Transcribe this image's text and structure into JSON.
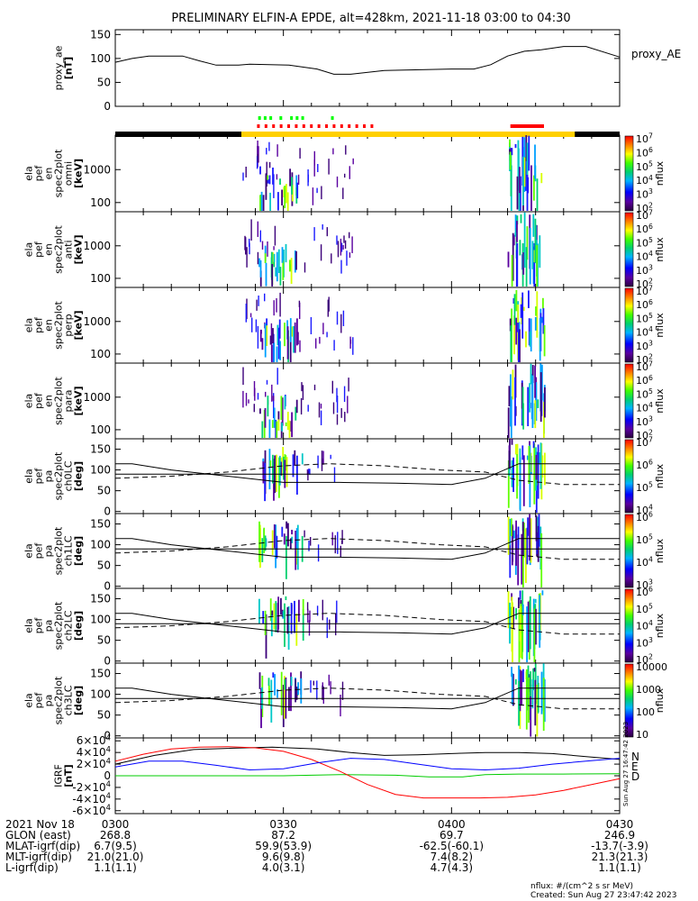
{
  "title": "PRELIMINARY ELFIN-A EPDE, alt=428km, 2021-11-18 03:00 to 04:30",
  "chart_data": {
    "type": "line",
    "title": "PRELIMINARY ELFIN-A EPDE, alt=428km, 2021-11-18 03:00 to 04:30",
    "time_range": [
      "03:00",
      "04:30"
    ],
    "panels": [
      {
        "id": "proxy_ae",
        "type": "line",
        "ylabel": [
          "proxy_ae",
          "[nT]"
        ],
        "yticks": [
          "0",
          "50",
          "100",
          "150"
        ],
        "ylim": [
          0,
          160
        ],
        "legend": "proxy_AE",
        "series": [
          {
            "name": "proxy_AE",
            "color": "#000000",
            "x": [
              0,
              3,
              6,
              12,
              15,
              18,
              22,
              24,
              31,
              36,
              39,
              42,
              48,
              60,
              64,
              67,
              70,
              73,
              76,
              80,
              84,
              90
            ],
            "y": [
              92,
              100,
              105,
              105,
              95,
              86,
              86,
              88,
              86,
              78,
              67,
              67,
              75,
              78,
              78,
              87,
              105,
              115,
              118,
              125,
              125,
              103
            ]
          }
        ]
      },
      {
        "id": "en_omni",
        "type": "heatmap",
        "ylabel": [
          "ela",
          "pef",
          "en",
          "spec2plot",
          "omni",
          "[keV]"
        ],
        "yticks": [
          "100",
          "1000"
        ],
        "colorbar": {
          "label": "nflux",
          "ticks": [
            "10^2",
            "10^3",
            "10^4",
            "10^5",
            "10^6",
            "10^7"
          ]
        }
      },
      {
        "id": "en_anti",
        "type": "heatmap",
        "ylabel": [
          "ela",
          "pef",
          "en",
          "spec2plot",
          "anti",
          "[keV]"
        ],
        "yticks": [
          "100",
          "1000"
        ],
        "colorbar": {
          "label": "nflux",
          "ticks": [
            "10^2",
            "10^3",
            "10^4",
            "10^5",
            "10^6",
            "10^7"
          ]
        }
      },
      {
        "id": "en_perp",
        "type": "heatmap",
        "ylabel": [
          "ela",
          "pef",
          "en",
          "spec2plot",
          "perp",
          "[keV]"
        ],
        "yticks": [
          "100",
          "1000"
        ],
        "colorbar": {
          "label": "nflux",
          "ticks": [
            "10^2",
            "10^3",
            "10^4",
            "10^5",
            "10^6",
            "10^7"
          ]
        }
      },
      {
        "id": "en_para",
        "type": "heatmap",
        "ylabel": [
          "ela",
          "pef",
          "en",
          "spec2plot",
          "para",
          "[keV]"
        ],
        "yticks": [
          "100",
          "1000"
        ],
        "colorbar": {
          "label": "nflux",
          "ticks": [
            "10^2",
            "10^3",
            "10^4",
            "10^5",
            "10^6",
            "10^7"
          ]
        }
      },
      {
        "id": "pa_ch0",
        "type": "heatmap",
        "ylabel": [
          "ela",
          "pef",
          "pa",
          "spec2plot",
          "ch0LC",
          "[deg]"
        ],
        "yticks": [
          "0",
          "50",
          "100",
          "150"
        ],
        "colorbar": {
          "label": "nflux",
          "ticks": [
            "10^4",
            "10^5",
            "10^6",
            "10^7"
          ]
        }
      },
      {
        "id": "pa_ch1",
        "type": "heatmap",
        "ylabel": [
          "ela",
          "pef",
          "pa",
          "spec2plot",
          "ch1LC",
          "[deg]"
        ],
        "yticks": [
          "0",
          "50",
          "100",
          "150"
        ],
        "colorbar": {
          "label": "nflux",
          "ticks": [
            "10^3",
            "10^4",
            "10^5",
            "10^6"
          ]
        }
      },
      {
        "id": "pa_ch2",
        "type": "heatmap",
        "ylabel": [
          "ela",
          "pef",
          "pa",
          "spec2plot",
          "ch2LC",
          "[deg]"
        ],
        "yticks": [
          "0",
          "50",
          "100",
          "150"
        ],
        "colorbar": {
          "label": "nflux",
          "ticks": [
            "10^2",
            "10^3",
            "10^4",
            "10^5",
            "10^6"
          ]
        }
      },
      {
        "id": "pa_ch3",
        "type": "heatmap",
        "ylabel": [
          "ela",
          "pef",
          "pa",
          "spec2plot",
          "ch3LC",
          "[deg]"
        ],
        "yticks": [
          "0",
          "50",
          "100",
          "150"
        ],
        "colorbar": {
          "label": "nflux",
          "ticks": [
            "10",
            "100",
            "1000",
            "10000"
          ]
        }
      },
      {
        "id": "igrf",
        "type": "line",
        "ylabel": [
          "IGRF",
          "[nT]"
        ],
        "yticks": [
          "-6×10^4",
          "-4×10^4",
          "-2×10^4",
          "0",
          "2×10^4",
          "4×10^4",
          "6×10^4"
        ],
        "ylim": [
          -65000,
          65000
        ],
        "legend": [
          "N",
          "E",
          "D"
        ],
        "series": [
          {
            "name": "N",
            "color": "#000000",
            "x": [
              0,
              7,
              14,
              20,
              28,
              36,
              42,
              48,
              54,
              60,
              66,
              72,
              78,
              84,
              90
            ],
            "y": [
              20000,
              35000,
              45000,
              47000,
              49000,
              46000,
              40000,
              35000,
              36000,
              38000,
              40000,
              40000,
              38000,
              33000,
              28000
            ]
          },
          {
            "name": "E",
            "color": "#00cc00",
            "x": [
              0,
              10,
              20,
              30,
              40,
              50,
              56,
              62,
              66,
              72,
              80,
              90
            ],
            "y": [
              0,
              0,
              0,
              0,
              2000,
              1000,
              -2000,
              -2000,
              2000,
              3000,
              3000,
              3500
            ]
          },
          {
            "name": "D",
            "color": "#ff0000",
            "x": [
              0,
              5,
              10,
              15,
              20,
              25,
              30,
              35,
              40,
              45,
              50,
              55,
              60,
              65,
              70,
              75,
              80,
              85,
              90
            ],
            "y": [
              25000,
              37000,
              46000,
              49000,
              50000,
              48000,
              42000,
              28000,
              8000,
              -15000,
              -32000,
              -38000,
              -38000,
              -38000,
              -37000,
              -33000,
              -25000,
              -15000,
              -5000
            ]
          },
          {
            "name": "",
            "color": "#0000ff",
            "x": [
              0,
              6,
              12,
              18,
              24,
              30,
              36,
              42,
              48,
              54,
              60,
              66,
              72,
              78,
              84,
              90
            ],
            "y": [
              15000,
              25000,
              25000,
              18000,
              10000,
              12000,
              22000,
              30000,
              28000,
              20000,
              12000,
              10000,
              13000,
              20000,
              25000,
              30000
            ]
          }
        ]
      }
    ]
  },
  "xaxis": {
    "rows": [
      {
        "label": "2021 Nov 18",
        "values": [
          "0300",
          "0330",
          "0400",
          "0430"
        ]
      },
      {
        "label": "GLON (east)",
        "values": [
          "268.8",
          "87.2",
          "69.7",
          "246.9"
        ]
      },
      {
        "label": "MLAT-igrf(dip)",
        "values": [
          "6.7(9.5)",
          "59.9(53.9)",
          "-62.5(-60.1)",
          "-13.7(-3.9)"
        ]
      },
      {
        "label": "MLT-igrf(dip)",
        "values": [
          "21.0(21.0)",
          "9.6(9.8)",
          "7.4(8.2)",
          "21.3(21.3)"
        ]
      },
      {
        "label": "L-igrf(dip)",
        "values": [
          "1.1(1.1)",
          "4.0(3.1)",
          "4.7(4.3)",
          "1.1(1.1)"
        ]
      }
    ]
  },
  "footer": {
    "units": "nflux: #/(cm^2 s sr MeV)",
    "created": "Created: Sun Aug 27 23:47:42 2023",
    "stamp": "Sun Aug 27 16:47:42 2023"
  }
}
